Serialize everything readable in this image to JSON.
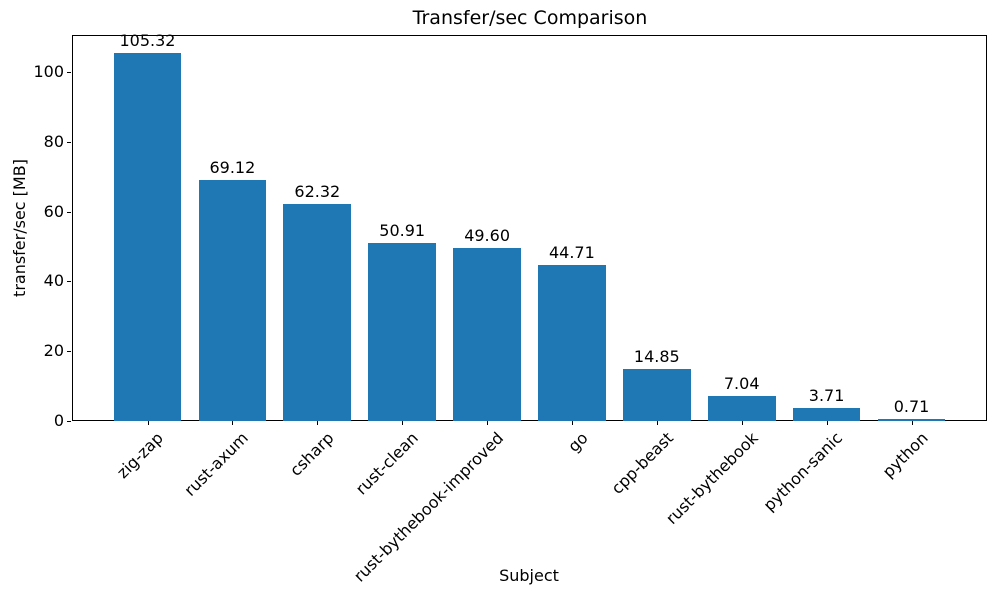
{
  "chart_data": {
    "type": "bar",
    "title": "Transfer/sec Comparison",
    "xlabel": "Subject",
    "ylabel": "transfer/sec [MB]",
    "categories": [
      "zig-zap",
      "rust-axum",
      "csharp",
      "rust-clean",
      "rust-bythebook-improved",
      "go",
      "cpp-beast",
      "rust-bythebook",
      "python-sanic",
      "python"
    ],
    "values": [
      105.32,
      69.12,
      62.32,
      50.91,
      49.6,
      44.71,
      14.85,
      7.04,
      3.71,
      0.71
    ],
    "value_labels": [
      "105.32",
      "69.12",
      "62.32",
      "50.91",
      "49.60",
      "44.71",
      "14.85",
      "7.04",
      "3.71",
      "0.71"
    ],
    "yticks": [
      0,
      20,
      40,
      60,
      80,
      100
    ],
    "ylim": [
      0,
      110.59
    ],
    "xlim": [
      -0.89,
      9.89
    ],
    "bar_width_data_units": 0.8,
    "bar_color": "#1f77b4",
    "background": "#ffffff",
    "grid": false,
    "legend": null,
    "x_tick_rotation": 45
  }
}
